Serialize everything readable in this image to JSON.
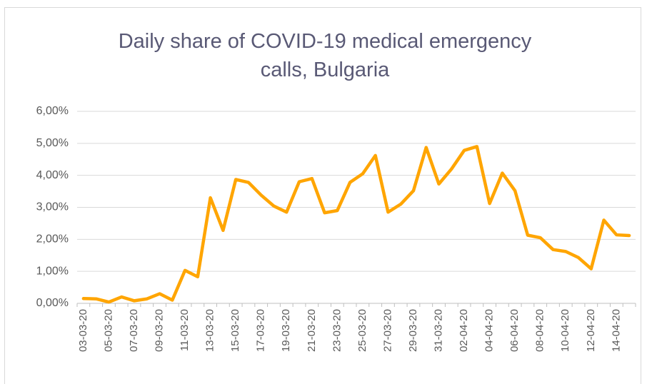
{
  "chart_data": {
    "type": "line",
    "title": "Daily share of COVID-19 medical emergency calls, Bulgaria",
    "categories": [
      "03-03-20",
      null,
      "05-03-20",
      null,
      "07-03-20",
      null,
      "09-03-20",
      null,
      "11-03-20",
      null,
      "13-03-20",
      null,
      "15-03-20",
      null,
      "17-03-20",
      null,
      "19-03-20",
      null,
      "21-03-20",
      null,
      "23-03-20",
      null,
      "25-03-20",
      null,
      "27-03-20",
      null,
      "29-03-20",
      null,
      "31-03-20",
      null,
      "02-04-20",
      null,
      "04-04-20",
      null,
      "06-04-20",
      null,
      "08-04-20",
      null,
      "10-04-20",
      null,
      "12-04-20",
      null,
      "14-04-20",
      null
    ],
    "values": [
      0.15,
      0.14,
      0.04,
      0.2,
      0.08,
      0.14,
      0.3,
      0.1,
      1.03,
      0.83,
      3.3,
      2.28,
      3.87,
      3.78,
      3.38,
      3.04,
      2.85,
      3.8,
      3.9,
      2.83,
      2.9,
      3.78,
      4.05,
      4.62,
      2.85,
      3.1,
      3.52,
      4.87,
      3.73,
      4.2,
      4.78,
      4.9,
      3.12,
      4.07,
      3.52,
      2.13,
      2.05,
      1.68,
      1.62,
      1.43,
      1.08,
      2.6,
      2.14,
      2.12
    ],
    "color": "#ffa500",
    "ylim": [
      0,
      6
    ],
    "yticks": [
      {
        "value": 0,
        "label": "0,00%"
      },
      {
        "value": 1,
        "label": "1,00%"
      },
      {
        "value": 2,
        "label": "2,00%"
      },
      {
        "value": 3,
        "label": "3,00%"
      },
      {
        "value": 4,
        "label": "4,00%"
      },
      {
        "value": 5,
        "label": "5,00%"
      },
      {
        "value": 6,
        "label": "6,00%"
      }
    ],
    "grid": true
  }
}
